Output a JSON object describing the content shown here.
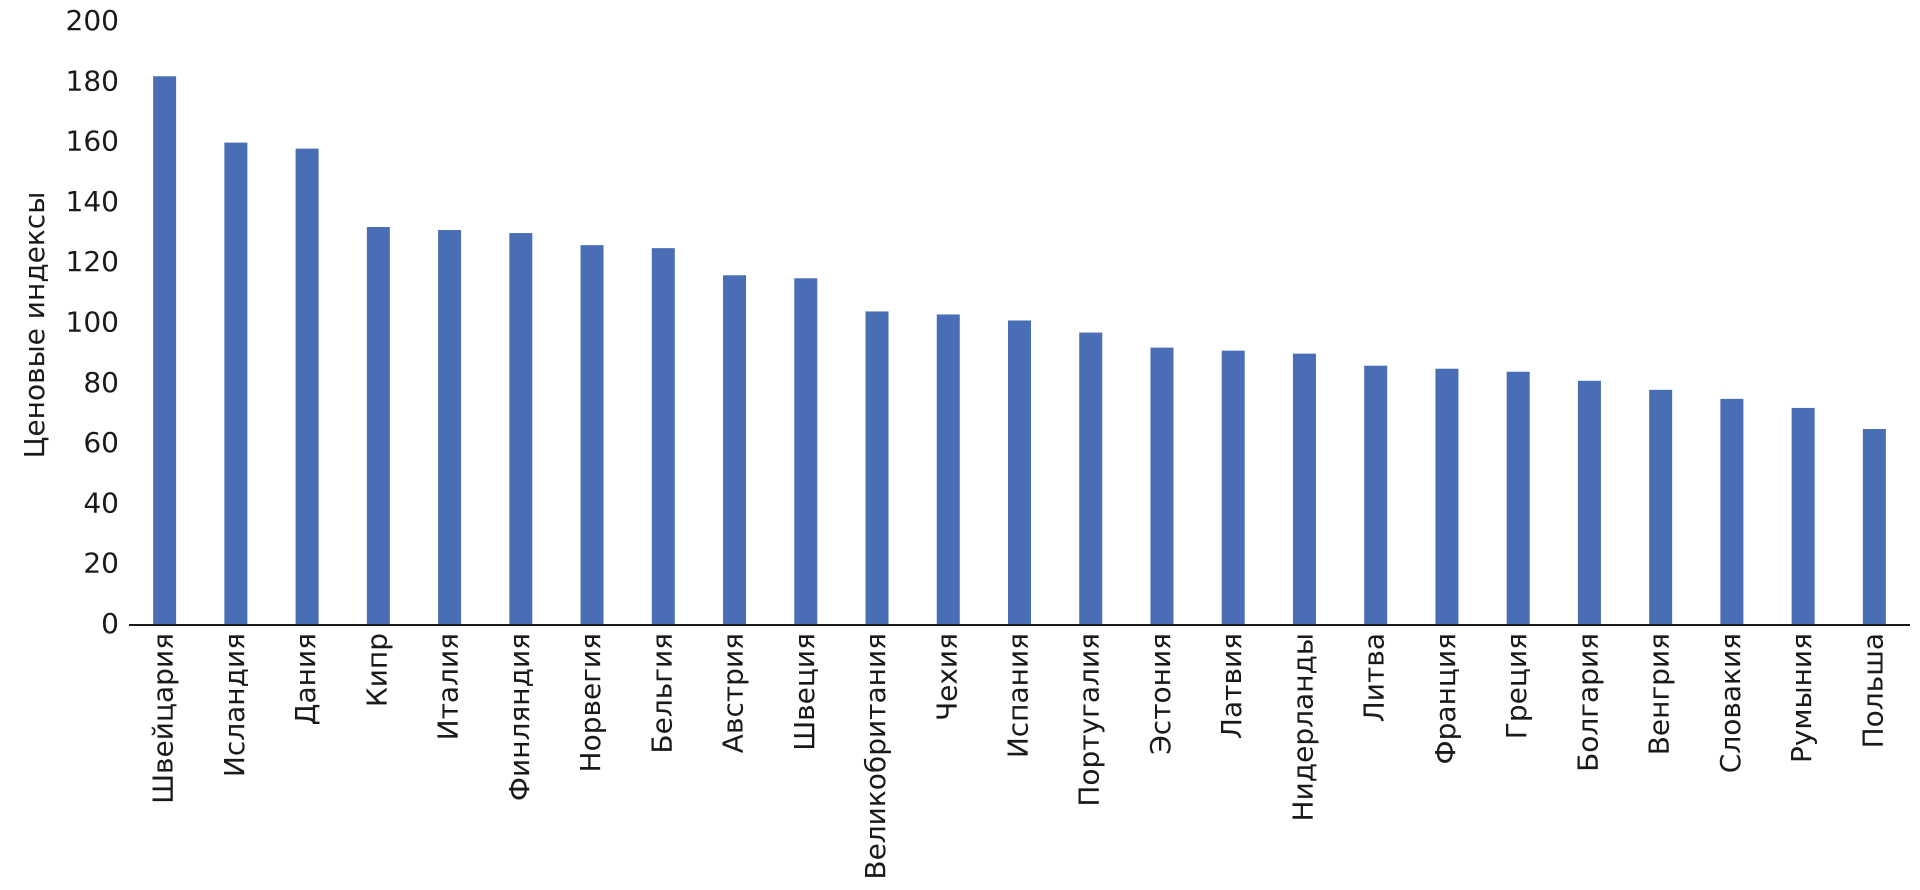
{
  "chart_data": {
    "type": "bar",
    "y_label": "Ценовые индексы",
    "categories": [
      "Швейцария",
      "Исландия",
      "Дания",
      "Кипр",
      "Италия",
      "Финляндия",
      "Норвегия",
      "Бельгия",
      "Австрия",
      "Швеция",
      "Великобритания",
      "Чехия",
      "Испания",
      "Португалия",
      "Эстония",
      "Латвия",
      "Нидерланды",
      "Литва",
      "Франция",
      "Греция",
      "Болгария",
      "Венгрия",
      "Словакия",
      "Румыния",
      "Польша"
    ],
    "values": [
      182,
      160,
      158,
      132,
      131,
      130,
      126,
      125,
      116,
      115,
      104,
      103,
      101,
      97,
      92,
      91,
      90,
      86,
      85,
      84,
      81,
      78,
      75,
      72,
      65
    ],
    "color": "#4a6eb5",
    "ylim": [
      0,
      200
    ],
    "yticks": [
      0,
      20,
      40,
      60,
      80,
      100,
      120,
      140,
      160,
      180,
      200
    ],
    "grid": false
  }
}
